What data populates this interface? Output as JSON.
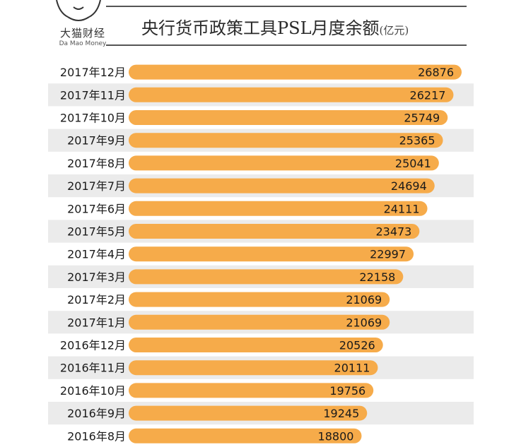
{
  "logo": {
    "name": "大猫财经",
    "subtitle": "Da Mao Money"
  },
  "header": {
    "title": "央行货币政策工具PSL月度余额",
    "unit": "(亿元)"
  },
  "chart_data": {
    "type": "bar",
    "orientation": "horizontal",
    "title": "央行货币政策工具PSL月度余额",
    "unit": "亿元",
    "xlabel": "",
    "ylabel": "",
    "categories": [
      "2017年12月",
      "2017年11月",
      "2017年10月",
      "2017年9月",
      "2017年8月",
      "2017年7月",
      "2017年6月",
      "2017年5月",
      "2017年4月",
      "2017年3月",
      "2017年2月",
      "2017年1月",
      "2016年12月",
      "2016年11月",
      "2016年10月",
      "2016年9月",
      "2016年8月"
    ],
    "values": [
      26876,
      26217,
      25749,
      25365,
      25041,
      24694,
      24111,
      23473,
      22997,
      22158,
      21069,
      21069,
      20526,
      20111,
      19756,
      19245,
      18800
    ],
    "colors": {
      "bar": "#f6ab4a",
      "row_shade": "#ebebeb",
      "text": "#1a1a1a"
    },
    "data_labels": true,
    "grid": false
  }
}
